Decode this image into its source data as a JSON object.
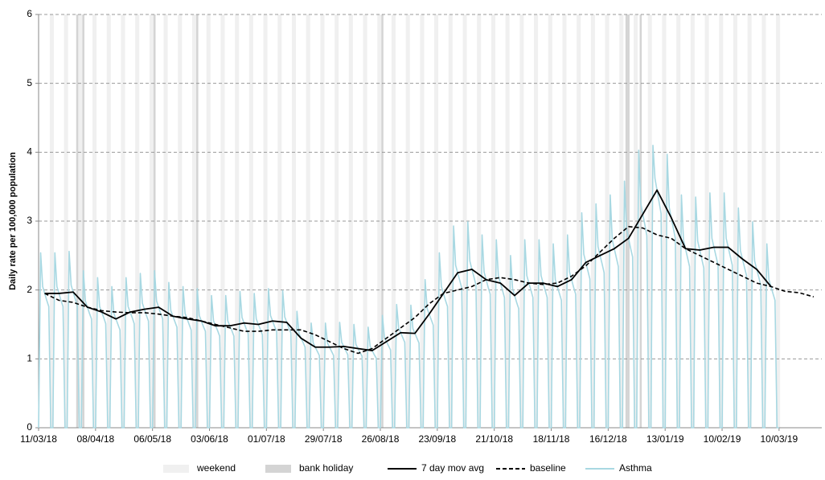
{
  "chart_data": {
    "type": "line",
    "y_label": "Daily rate per 100,000 population",
    "xlim": [
      0,
      385
    ],
    "xticks": [
      {
        "value": 0,
        "label": "11/03/18"
      },
      {
        "value": 28,
        "label": "08/04/18"
      },
      {
        "value": 56,
        "label": "06/05/18"
      },
      {
        "value": 84,
        "label": "03/06/18"
      },
      {
        "value": 112,
        "label": "01/07/18"
      },
      {
        "value": 140,
        "label": "29/07/18"
      },
      {
        "value": 168,
        "label": "26/08/18"
      },
      {
        "value": 196,
        "label": "23/09/18"
      },
      {
        "value": 224,
        "label": "21/10/18"
      },
      {
        "value": 252,
        "label": "18/11/18"
      },
      {
        "value": 280,
        "label": "16/12/18"
      },
      {
        "value": 308,
        "label": "13/01/19"
      },
      {
        "value": 336,
        "label": "10/02/19"
      },
      {
        "value": 364,
        "label": "10/03/19"
      }
    ],
    "ylim": [
      0,
      6
    ],
    "yticks": [
      0,
      1,
      2,
      3,
      4,
      5,
      6
    ],
    "grid": true,
    "weekend": {
      "name": "weekend",
      "color": "#f0f0f0",
      "x": [
        6,
        13,
        20,
        27,
        34,
        41,
        48,
        55,
        62,
        69,
        76,
        83,
        90,
        97,
        104,
        111,
        118,
        125,
        132,
        139,
        146,
        153,
        160,
        167,
        174,
        181,
        188,
        195,
        202,
        209,
        216,
        223,
        230,
        237,
        244,
        251,
        258,
        265,
        272,
        279,
        286,
        293,
        300,
        307,
        314,
        321,
        328,
        335,
        342,
        349,
        356,
        363
      ]
    },
    "bank_holiday": {
      "name": "bank holiday",
      "color": "#d4d4d4",
      "x": [
        19,
        22,
        57,
        78,
        169,
        289,
        290,
        296
      ]
    },
    "series": [
      {
        "name": "Asthma",
        "color": "#a8d8e2",
        "style": "solid",
        "x": [
          0,
          1,
          2,
          3,
          4,
          5,
          6,
          7,
          8,
          9,
          10,
          11,
          12,
          13,
          14,
          15,
          16,
          17,
          18,
          19,
          20,
          21,
          22,
          23,
          24,
          25,
          26,
          27,
          28,
          29,
          30,
          31,
          32,
          33,
          34,
          35,
          36,
          37,
          38,
          39,
          40,
          41,
          42,
          43,
          44,
          45,
          46,
          47,
          48,
          49,
          50,
          51,
          52,
          53,
          54,
          55,
          56,
          57,
          58,
          59,
          60,
          61,
          62,
          63,
          64,
          65,
          66,
          67,
          68,
          69,
          70,
          71,
          72,
          73,
          74,
          75,
          76,
          77,
          78,
          79,
          80,
          81,
          82,
          83,
          84,
          85,
          86,
          87,
          88,
          89,
          90,
          91,
          92,
          93,
          94,
          95,
          96,
          97,
          98,
          99,
          100,
          101,
          102,
          103,
          104,
          105,
          106,
          107,
          108,
          109,
          110,
          111,
          112,
          113,
          114,
          115,
          116,
          117,
          118,
          119,
          120,
          121,
          122,
          123,
          124,
          125,
          126,
          127,
          128,
          129,
          130,
          131,
          132,
          133,
          134,
          135,
          136,
          137,
          138,
          139,
          140,
          141,
          142,
          143,
          144,
          145,
          146,
          147,
          148,
          149,
          150,
          151,
          152,
          153,
          154,
          155,
          156,
          157,
          158,
          159,
          160,
          161,
          162,
          163,
          164,
          165,
          166,
          167,
          168,
          169,
          170,
          171,
          172,
          173,
          174,
          175,
          176,
          177,
          178,
          179,
          180,
          181,
          182,
          183,
          184,
          185,
          186,
          187,
          188,
          189,
          190,
          191,
          192,
          193,
          194,
          195,
          196,
          197,
          198,
          199,
          200,
          201,
          202,
          203,
          204,
          205,
          206,
          207,
          208,
          209,
          210,
          211,
          212,
          213,
          214,
          215,
          216,
          217,
          218,
          219,
          220,
          221,
          222,
          223,
          224,
          225,
          226,
          227,
          228,
          229,
          230,
          231,
          232,
          233,
          234,
          235,
          236,
          237,
          238,
          239,
          240,
          241,
          242,
          243,
          244,
          245,
          246,
          247,
          248,
          249,
          250,
          251,
          252,
          253,
          254,
          255,
          256,
          257,
          258,
          259,
          260,
          261,
          262,
          263,
          264,
          265,
          266,
          267,
          268,
          269,
          270,
          271,
          272,
          273,
          274,
          275,
          276,
          277,
          278,
          279,
          280,
          281,
          282,
          283,
          284,
          285,
          286,
          287,
          288,
          289,
          290,
          291,
          292,
          293,
          294,
          295,
          296,
          297,
          298,
          299,
          300,
          301,
          302,
          303,
          304,
          305,
          306,
          307,
          308,
          309,
          310,
          311,
          312,
          313,
          314,
          315,
          316,
          317,
          318,
          319,
          320,
          321,
          322,
          323,
          324,
          325,
          326,
          327,
          328,
          329,
          330,
          331,
          332,
          333,
          334,
          335,
          336,
          337,
          338,
          339,
          340,
          341,
          342,
          343,
          344,
          345,
          346,
          347,
          348,
          349,
          350,
          351,
          352,
          353,
          354,
          355,
          356,
          357,
          358,
          359,
          360,
          361,
          362,
          363,
          364
        ],
        "values": [
          0,
          2.54,
          2.05,
          1.95,
          1.85,
          1.76,
          0,
          0,
          2.54,
          2.05,
          1.95,
          1.85,
          1.76,
          0,
          0,
          2.56,
          2.07,
          1.97,
          1.87,
          1.77,
          0,
          0,
          2.28,
          1.84,
          1.75,
          1.66,
          1.58,
          0,
          0,
          2.18,
          1.76,
          1.68,
          1.6,
          1.51,
          0,
          0,
          2.05,
          1.66,
          1.58,
          1.5,
          1.42,
          0,
          0,
          2.18,
          1.76,
          1.68,
          1.6,
          1.51,
          0,
          0,
          2.24,
          1.81,
          1.72,
          1.63,
          1.55,
          0,
          0,
          2.28,
          1.84,
          1.75,
          1.66,
          1.58,
          0,
          0,
          2.11,
          1.7,
          1.62,
          1.54,
          1.46,
          0,
          0,
          2.05,
          1.66,
          1.58,
          1.5,
          1.42,
          0,
          0,
          2.02,
          1.63,
          1.55,
          1.47,
          1.4,
          0,
          0,
          1.92,
          1.55,
          1.48,
          1.41,
          1.33,
          0,
          0,
          1.92,
          1.55,
          1.48,
          1.41,
          1.33,
          0,
          0,
          1.98,
          1.6,
          1.52,
          1.44,
          1.37,
          0,
          0,
          1.95,
          1.58,
          1.5,
          1.43,
          1.35,
          0,
          0,
          2.02,
          1.63,
          1.55,
          1.47,
          1.4,
          0,
          0,
          1.99,
          1.61,
          1.53,
          1.45,
          1.38,
          0,
          0,
          1.69,
          1.37,
          1.3,
          1.24,
          1.17,
          0,
          0,
          1.52,
          1.23,
          1.17,
          1.11,
          1.05,
          0,
          0,
          1.52,
          1.23,
          1.17,
          1.11,
          1.05,
          0,
          0,
          1.53,
          1.24,
          1.18,
          1.12,
          1.06,
          0,
          0,
          1.5,
          1.21,
          1.15,
          1.09,
          1.04,
          0,
          0,
          1.46,
          1.18,
          1.12,
          1.06,
          1.01,
          0,
          0,
          1.63,
          1.31,
          1.25,
          1.19,
          1.13,
          0,
          0,
          1.79,
          1.45,
          1.38,
          1.31,
          1.24,
          0,
          0,
          1.78,
          1.44,
          1.37,
          1.3,
          1.23,
          0,
          0,
          2.15,
          1.73,
          1.65,
          1.57,
          1.49,
          0,
          0,
          2.54,
          2.05,
          1.95,
          1.85,
          1.76,
          0,
          0,
          2.93,
          2.36,
          2.25,
          2.14,
          2.03,
          0,
          0,
          2.99,
          2.42,
          2.3,
          2.19,
          2.07,
          0,
          0,
          2.8,
          2.26,
          2.15,
          2.04,
          1.94,
          0,
          0,
          2.73,
          2.21,
          2.1,
          2.0,
          1.89,
          0,
          0,
          2.5,
          2.02,
          1.92,
          1.82,
          1.73,
          0,
          0,
          2.73,
          2.21,
          2.1,
          2.0,
          1.89,
          0,
          0,
          2.73,
          2.21,
          2.1,
          2.0,
          1.89,
          0,
          0,
          2.67,
          2.15,
          2.05,
          1.95,
          1.85,
          0,
          0,
          2.8,
          2.26,
          2.15,
          2.04,
          1.94,
          0,
          0,
          3.12,
          2.52,
          2.4,
          2.28,
          2.16,
          0,
          0,
          3.25,
          2.63,
          2.5,
          2.38,
          2.25,
          0,
          0,
          3.38,
          2.73,
          2.6,
          2.47,
          2.34,
          0,
          0,
          3.58,
          2.89,
          2.75,
          2.61,
          2.48,
          0,
          0,
          4.03,
          3.26,
          3.1,
          2.95,
          2.79,
          0,
          0,
          4.1,
          3.62,
          3.45,
          3.28,
          3.11,
          0,
          0,
          3.97,
          3.2,
          3.05,
          2.9,
          2.75,
          0,
          0,
          3.38,
          2.73,
          2.6,
          2.47,
          2.34,
          0,
          0,
          3.35,
          2.71,
          2.58,
          2.45,
          2.32,
          0,
          0,
          3.41,
          2.75,
          2.62,
          2.49,
          2.36,
          0,
          0,
          3.41,
          2.75,
          2.62,
          2.49,
          2.36,
          0,
          0,
          3.19,
          2.57,
          2.45,
          2.33,
          2.21,
          0,
          0,
          2.99,
          2.42,
          2.3,
          2.19,
          2.07,
          0,
          0,
          2.67,
          2.15,
          2.05,
          1.95,
          1.85,
          0,
          0
        ]
      },
      {
        "name": "baseline",
        "color": "#000000",
        "style": "dashed",
        "x": [
          3,
          10,
          17,
          24,
          31,
          38,
          45,
          52,
          59,
          66,
          73,
          80,
          87,
          94,
          101,
          108,
          115,
          122,
          129,
          136,
          143,
          150,
          157,
          164,
          171,
          178,
          185,
          192,
          199,
          206,
          213,
          220,
          227,
          234,
          241,
          248,
          255,
          262,
          269,
          276,
          283,
          290,
          297,
          304,
          311,
          318,
          325,
          332,
          339,
          346,
          353,
          360,
          367,
          374,
          381
        ],
        "values": [
          1.95,
          1.85,
          1.82,
          1.75,
          1.7,
          1.68,
          1.67,
          1.67,
          1.65,
          1.62,
          1.6,
          1.55,
          1.5,
          1.45,
          1.4,
          1.4,
          1.42,
          1.42,
          1.42,
          1.35,
          1.25,
          1.15,
          1.08,
          1.15,
          1.3,
          1.45,
          1.6,
          1.8,
          1.95,
          2.0,
          2.05,
          2.15,
          2.18,
          2.15,
          2.1,
          2.08,
          2.1,
          2.2,
          2.35,
          2.55,
          2.75,
          2.92,
          2.9,
          2.8,
          2.75,
          2.6,
          2.5,
          2.4,
          2.3,
          2.2,
          2.1,
          2.05,
          1.98,
          1.96,
          1.9
        ]
      },
      {
        "name": "7 day mov avg",
        "color": "#000000",
        "style": "solid",
        "x": [
          3,
          10,
          17,
          24,
          31,
          38,
          45,
          52,
          59,
          66,
          73,
          80,
          87,
          94,
          101,
          108,
          115,
          122,
          129,
          136,
          143,
          150,
          157,
          164,
          171,
          178,
          185,
          192,
          199,
          206,
          213,
          220,
          227,
          234,
          241,
          248,
          255,
          262,
          269,
          276,
          283,
          290,
          297,
          304,
          311,
          318,
          325,
          332,
          339,
          346,
          353,
          360
        ],
        "values": [
          1.95,
          1.95,
          1.97,
          1.75,
          1.68,
          1.58,
          1.68,
          1.72,
          1.75,
          1.62,
          1.58,
          1.55,
          1.48,
          1.48,
          1.52,
          1.5,
          1.55,
          1.53,
          1.3,
          1.17,
          1.17,
          1.18,
          1.15,
          1.12,
          1.25,
          1.38,
          1.37,
          1.65,
          1.95,
          2.25,
          2.3,
          2.15,
          2.1,
          1.92,
          2.1,
          2.1,
          2.05,
          2.15,
          2.4,
          2.5,
          2.6,
          2.75,
          3.1,
          3.45,
          3.05,
          2.6,
          2.58,
          2.62,
          2.62,
          2.45,
          2.3,
          2.05
        ]
      }
    ],
    "legend": [
      "weekend",
      "bank holiday",
      "7 day mov avg",
      "baseline",
      "Asthma"
    ]
  }
}
